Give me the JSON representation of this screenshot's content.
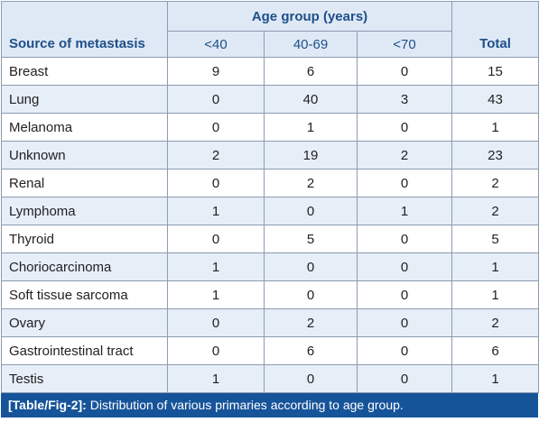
{
  "table": {
    "header": {
      "source": "Source of metastasis",
      "group": "Age group (years)",
      "subgroups": [
        "<40",
        "40-69",
        "<70"
      ],
      "total": "Total"
    },
    "rows": [
      {
        "label": "Breast",
        "values": [
          "9",
          "6",
          "0"
        ],
        "total": "15"
      },
      {
        "label": "Lung",
        "values": [
          "0",
          "40",
          "3"
        ],
        "total": "43"
      },
      {
        "label": "Melanoma",
        "values": [
          "0",
          "1",
          "0"
        ],
        "total": "1"
      },
      {
        "label": "Unknown",
        "values": [
          "2",
          "19",
          "2"
        ],
        "total": "23"
      },
      {
        "label": "Renal",
        "values": [
          "0",
          "2",
          "0"
        ],
        "total": "2"
      },
      {
        "label": "Lymphoma",
        "values": [
          "1",
          "0",
          "1"
        ],
        "total": "2"
      },
      {
        "label": "Thyroid",
        "values": [
          "0",
          "5",
          "0"
        ],
        "total": "5"
      },
      {
        "label": "Choriocarcinoma",
        "values": [
          "1",
          "0",
          "0"
        ],
        "total": "1"
      },
      {
        "label": "Soft tissue sarcoma",
        "values": [
          "1",
          "0",
          "0"
        ],
        "total": "1"
      },
      {
        "label": "Ovary",
        "values": [
          "0",
          "2",
          "0"
        ],
        "total": "2"
      },
      {
        "label": "Gastrointestinal tract",
        "values": [
          "0",
          "6",
          "0"
        ],
        "total": "6"
      },
      {
        "label": "Testis",
        "values": [
          "1",
          "0",
          "0"
        ],
        "total": "1"
      }
    ]
  },
  "caption": {
    "ref": "[Table/Fig-2]:",
    "text": "Distribution of various primaries according to age group."
  },
  "colors": {
    "header_bg": "#dfe9f5",
    "header_text": "#1e4f8a",
    "stripe": "#e6eef8",
    "caption_bg": "#16549a",
    "border": "#8c9bb0"
  }
}
